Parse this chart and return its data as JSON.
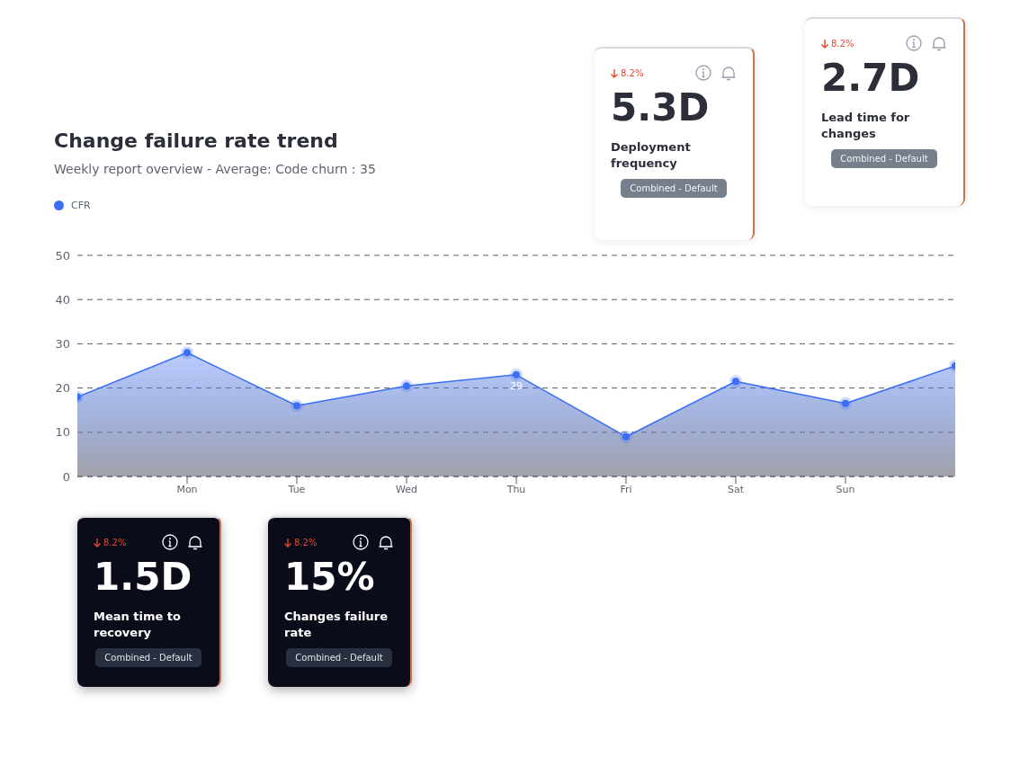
{
  "chart_data": [
    {
      "type": "area",
      "title": "Change failure rate trend",
      "subtitle": "Weekly report overview - Average: Code churn : 35",
      "legend": "top left",
      "grid": "y",
      "line_style": "solid",
      "marker": "circle",
      "categories": [
        null,
        "Mon",
        "Tue",
        "Wed",
        "Thu",
        "Fri",
        "Sat",
        "Sun",
        null
      ],
      "ylim": [
        0,
        50
      ],
      "yticks": [
        0,
        10,
        20,
        30,
        40,
        50
      ],
      "series": [
        {
          "name": "CFR",
          "color": "#3b6ef5",
          "values": [
            18,
            28,
            16,
            20.5,
            23,
            9,
            21.5,
            16.5,
            25
          ]
        }
      ],
      "annotations": [
        {
          "text": "29",
          "x": "Thu",
          "y": 23
        }
      ]
    },
    {
      "type": "other",
      "title": "5.3D",
      "subtitle": "Deployment frequency",
      "annotations": [
        "8.2%",
        "Combined - Default"
      ]
    },
    {
      "type": "other",
      "title": "2.7D",
      "subtitle": "Lead time for changes",
      "annotations": [
        "8.2%",
        "Combined - Default"
      ]
    },
    {
      "type": "other",
      "title": "1.5D",
      "subtitle": "Mean time to recovery",
      "annotations": [
        "8.2%",
        "Combined - Default"
      ]
    },
    {
      "type": "other",
      "title": "15%",
      "subtitle": "Changes failure rate",
      "annotations": [
        "8.2%",
        "Combined - Default"
      ]
    }
  ]
}
